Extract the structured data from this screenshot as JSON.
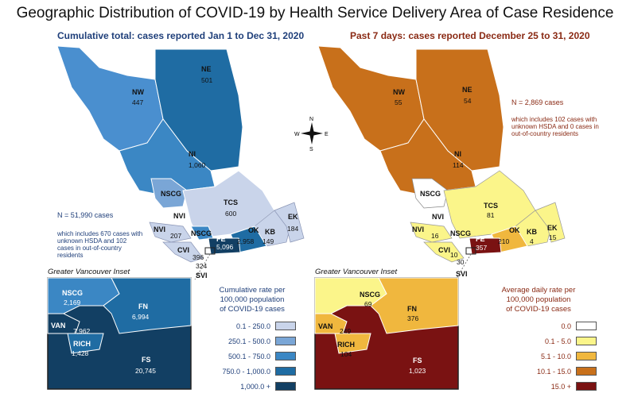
{
  "title": "Geographic Distribution of COVID-19 by Health Service Delivery Area of Case Residence",
  "left": {
    "subtitle": "Cumulative total: cases reported Jan 1 to Dec 31, 2020",
    "total": "N = 51,990 cases",
    "note": "which includes 670 cases with unknown HSDA and 102 cases in out-of-country residents",
    "inset_title": "Greater Vancouver Inset",
    "legend_title": [
      "Cumulative rate per",
      "100,000 population",
      "of COVID-19 cases"
    ],
    "legend": [
      {
        "label": "0.1 - 250.0",
        "color": "#c9d4ea"
      },
      {
        "label": "250.1 - 500.0",
        "color": "#7aa6d6"
      },
      {
        "label": "500.1 - 750.0",
        "color": "#3b87c4"
      },
      {
        "label": "750.0 - 1,000.0",
        "color": "#1f6ca3"
      },
      {
        "label": "1,000.0 +",
        "color": "#123f63"
      }
    ],
    "regions": {
      "NW": "447",
      "NE": "501",
      "NI": "1,060",
      "NSCG": "",
      "TCS": "600",
      "NVI": "207",
      "NSCG2": "",
      "FE": "5,096",
      "OK": "2,958",
      "KB": "149",
      "EK": "184",
      "CVI": "396",
      "SVI": "324",
      "SVI_label": "SVI"
    },
    "inset": {
      "NSCG": "2,169",
      "FN": "6,994",
      "VAN": "7,962",
      "RICH": "1,428",
      "FS": "20,745"
    }
  },
  "right": {
    "subtitle": "Past 7 days: cases reported December 25 to 31, 2020",
    "total": "N = 2,869 cases",
    "note": "which includes 102 cases with unknown HSDA and 0 cases in out-of-country residents",
    "inset_title": "Greater Vancouver Inset",
    "legend_title": [
      "Average daily rate per",
      "100,000 population",
      "of COVID-19 cases"
    ],
    "legend": [
      {
        "label": "0.0",
        "color": "#ffffff"
      },
      {
        "label": "0.1 - 5.0",
        "color": "#fbf58a"
      },
      {
        "label": "5.1 - 10.0",
        "color": "#f0b73e"
      },
      {
        "label": "10.1 - 15.0",
        "color": "#c8701b"
      },
      {
        "label": "15.0 +",
        "color": "#7a1212"
      }
    ],
    "regions": {
      "NW": "55",
      "NE": "54",
      "NI": "114",
      "TCS": "81",
      "NVI": "16",
      "FE": "357",
      "OK": "210",
      "KB": "4",
      "EK": "15",
      "CVI": "10",
      "SVI": "30"
    },
    "inset": {
      "NSCG": "69",
      "FN": "376",
      "VAN": "249",
      "RICH": "104",
      "FS": "1,023"
    }
  },
  "labels": {
    "NW": "NW",
    "NE": "NE",
    "NI": "NI",
    "NSCG": "NSCG",
    "TCS": "TCS",
    "NVI": "NVI",
    "FE": "FE",
    "OK": "OK",
    "KB": "KB",
    "EK": "EK",
    "CVI": "CVI",
    "SVI": "SVI",
    "FN": "FN",
    "VAN": "VAN",
    "RICH": "RICH",
    "FS": "FS"
  },
  "compass": {
    "N": "N",
    "S": "S",
    "E": "E",
    "W": "W"
  }
}
